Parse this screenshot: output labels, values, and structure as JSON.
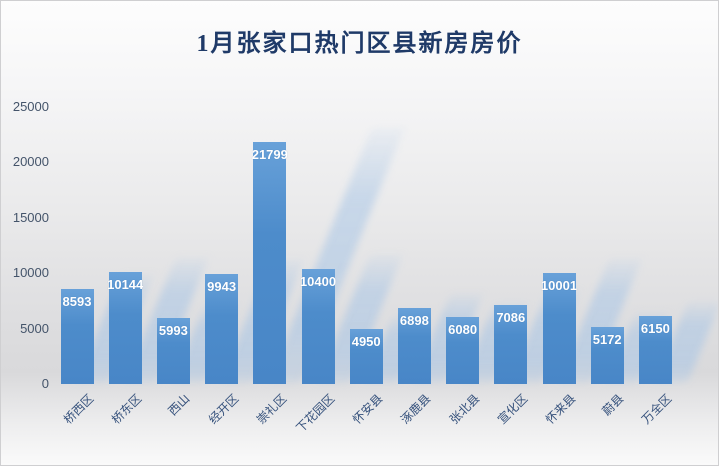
{
  "title": "1月张家口热门区县新房房价",
  "chart_data": {
    "type": "bar",
    "title": "1月张家口热门区县新房房价",
    "categories": [
      "桥西区",
      "桥东区",
      "西山",
      "经开区",
      "崇礼区",
      "下花园区",
      "怀安县",
      "涿鹿县",
      "张北县",
      "宣化区",
      "怀来县",
      "蔚县",
      "万全区"
    ],
    "values": [
      8593,
      10144,
      5993,
      9943,
      21799,
      10400,
      4950,
      6898,
      6080,
      7086,
      10001,
      5172,
      6150
    ],
    "data_labels": [
      "8593",
      "10144",
      "5993",
      "9943",
      "21799",
      "10400",
      "4950",
      "6898",
      "6080",
      "7086",
      "10001",
      "5172",
      "6150"
    ],
    "ytick_labels": [
      "0",
      "5000",
      "10000",
      "15000",
      "20000",
      "25000"
    ],
    "yticks": [
      0,
      5000,
      10000,
      15000,
      20000,
      25000
    ],
    "ylim": [
      0,
      25000
    ],
    "xlabel": "",
    "ylabel": "",
    "grid": false,
    "legend": false,
    "x_tick_rotation_deg": 45,
    "colors": {
      "bar": "#4d8ccb",
      "bar_top": "#68a1d9",
      "bar_bottom": "#4886c7",
      "bar_shadow": "#a7c5e6",
      "title_text": "#1f3a68",
      "y_tick_text": "#44546a",
      "x_tick_text": "#35517c",
      "data_label_text": "#ffffff",
      "background_top": "#fdfdfd",
      "background_mid": "#d9d9db"
    }
  }
}
